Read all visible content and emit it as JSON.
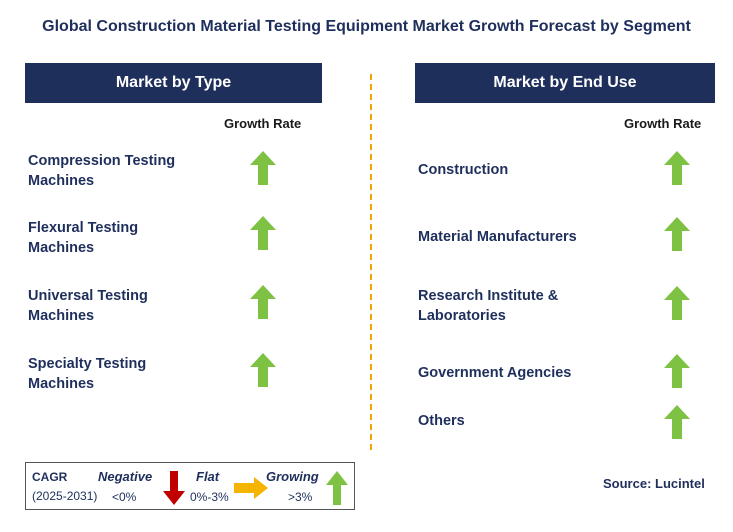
{
  "title": "Global Construction Material Testing Equipment Market Growth Forecast by Segment",
  "left": {
    "header": "Market by Type",
    "growth_label": "Growth Rate",
    "items": [
      {
        "line1": "Compression Testing",
        "line2": "Machines",
        "trend": "growing"
      },
      {
        "line1": "Flexural Testing",
        "line2": "Machines",
        "trend": "growing"
      },
      {
        "line1": "Universal Testing",
        "line2": "Machines",
        "trend": "growing"
      },
      {
        "line1": "Specialty Testing",
        "line2": "Machines",
        "trend": "growing"
      }
    ]
  },
  "right": {
    "header": "Market by End Use",
    "growth_label": "Growth Rate",
    "items": [
      {
        "line1": "Construction",
        "line2": "",
        "trend": "growing"
      },
      {
        "line1": "Material Manufacturers",
        "line2": "",
        "trend": "growing"
      },
      {
        "line1": "Research Institute &",
        "line2": "Laboratories",
        "trend": "growing"
      },
      {
        "line1": "Government Agencies",
        "line2": "",
        "trend": "growing"
      },
      {
        "line1": "Others",
        "line2": "",
        "trend": "growing"
      }
    ]
  },
  "legend": {
    "cagr": "CAGR",
    "period": "(2025-2031)",
    "negative_label": "Negative",
    "negative_range": "<0%",
    "flat_label": "Flat",
    "flat_range": "0%-3%",
    "growing_label": "Growing",
    "growing_range": ">3%"
  },
  "source": "Source: Lucintel",
  "colors": {
    "navy": "#1f2f5c",
    "growing": "#7dc242",
    "negative": "#c00000",
    "flat": "#f5b400",
    "divider": "#f0a500"
  }
}
